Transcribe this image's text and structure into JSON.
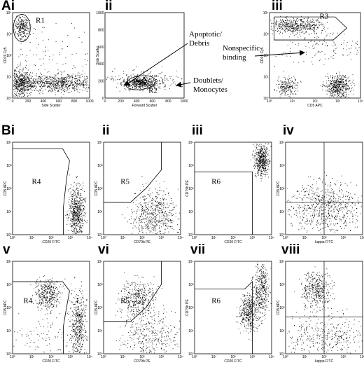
{
  "panels": [
    {
      "label": "Ai",
      "x_label": "Side Scatter",
      "y_label": "CD19 Cy5",
      "x_ticks": [
        "0",
        "200",
        "400",
        "600",
        "800",
        "1000"
      ],
      "y_ticks": [
        "10⁰",
        "10¹",
        "10²",
        "10³",
        "10⁴"
      ],
      "gate": "R1"
    },
    {
      "label": "ii",
      "x_label": "Forward Scatter",
      "y_label": "Side Scatter",
      "x_ticks": [
        "0",
        "200",
        "400",
        "600",
        "800",
        "1000"
      ],
      "y_ticks": [
        "0",
        "200",
        "400",
        "600",
        "800",
        "1000"
      ],
      "gate": "R2"
    },
    {
      "label": "iii",
      "x_label": "CD5 APC",
      "y_label": "CD19 Cy5",
      "x_ticks": [
        "10⁰",
        "10¹",
        "10²",
        "10³",
        "10⁴"
      ],
      "y_ticks": [
        "10⁰",
        "10¹",
        "10²",
        "10³",
        "10⁴"
      ],
      "gate": "R3"
    },
    {
      "label": "Bi",
      "x_label": "CD20 FITC",
      "y_label": "CD5 APC",
      "x_ticks": [
        "10⁰",
        "10¹",
        "10²",
        "10³",
        "10⁴"
      ],
      "y_ticks": [
        "10⁰",
        "10¹",
        "10²",
        "10³",
        "10⁴"
      ],
      "gate": "R4"
    },
    {
      "label": "ii",
      "x_label": "CD79b PE",
      "y_label": "CD5 APC",
      "x_ticks": [
        "10⁰",
        "10¹",
        "10²",
        "10³",
        "10⁴"
      ],
      "y_ticks": [
        "10⁰",
        "10¹",
        "10²",
        "10³",
        "10⁴"
      ],
      "gate": "R5"
    },
    {
      "label": "iii",
      "x_label": "CD20 FITC",
      "y_label": "CD79b PE",
      "x_ticks": [
        "10⁰",
        "10¹",
        "10²",
        "10³",
        "10⁴"
      ],
      "y_ticks": [
        "10⁰",
        "10¹",
        "10²",
        "10³",
        "10⁴"
      ],
      "gate": "R6"
    },
    {
      "label": "iv",
      "x_label": "kappa FITC",
      "y_label": "CD5 APC",
      "x_ticks": [
        "10⁰",
        "10¹",
        "10²",
        "10³",
        "10⁴"
      ],
      "y_ticks": [
        "10⁰",
        "10¹",
        "10²",
        "10³",
        "10⁴"
      ]
    },
    {
      "label": "v",
      "x_label": "CD20 FITC",
      "y_label": "CD5 APC",
      "x_ticks": [
        "10⁰",
        "10¹",
        "10²",
        "10³",
        "10⁴"
      ],
      "y_ticks": [
        "10⁰",
        "10¹",
        "10²",
        "10³",
        "10⁴"
      ],
      "gate": "R4"
    },
    {
      "label": "vi",
      "x_label": "CD79b PE",
      "y_label": "CD5 APC",
      "x_ticks": [
        "10⁰",
        "10¹",
        "10²",
        "10³",
        "10⁴"
      ],
      "y_ticks": [
        "10⁰",
        "10¹",
        "10²",
        "10³",
        "10⁴"
      ],
      "gate": "R5"
    },
    {
      "label": "vii",
      "x_label": "CD20 FITC",
      "y_label": "CD79b PE",
      "x_ticks": [
        "10⁰",
        "10¹",
        "10²",
        "10³",
        "10⁴"
      ],
      "y_ticks": [
        "10⁰",
        "10¹",
        "10²",
        "10³",
        "10⁴"
      ],
      "gate": "R6"
    },
    {
      "label": "viii",
      "x_label": "kappa FITC",
      "y_label": "CD5 APC",
      "x_ticks": [
        "10⁰",
        "10¹",
        "10²",
        "10³",
        "10⁴"
      ],
      "y_ticks": [
        "10⁰",
        "10¹",
        "10²",
        "10³",
        "10⁴"
      ]
    }
  ],
  "annotations": [
    {
      "lines": [
        "Apoptotic/",
        "Debris"
      ]
    },
    {
      "lines": [
        "Doublets/",
        "Monocytes"
      ]
    },
    {
      "lines": [
        "Nonspecific",
        "binding"
      ]
    }
  ]
}
